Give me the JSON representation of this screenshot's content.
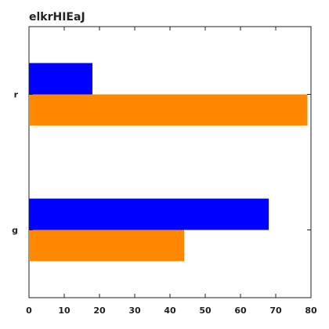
{
  "chart_data": {
    "type": "bar",
    "orientation": "horizontal",
    "title": "elkrHIEaJ",
    "xlabel": "",
    "ylabel": "",
    "categories": [
      "g",
      "r"
    ],
    "series": [
      {
        "color": "#0000ff",
        "values": [
          68,
          18
        ]
      },
      {
        "color": "#ff8800",
        "values": [
          44,
          79
        ]
      }
    ],
    "xlim": [
      0,
      80
    ],
    "xticks": [
      0,
      10,
      20,
      30,
      40,
      50,
      60,
      70,
      80
    ],
    "grid": false,
    "legend": "none"
  }
}
